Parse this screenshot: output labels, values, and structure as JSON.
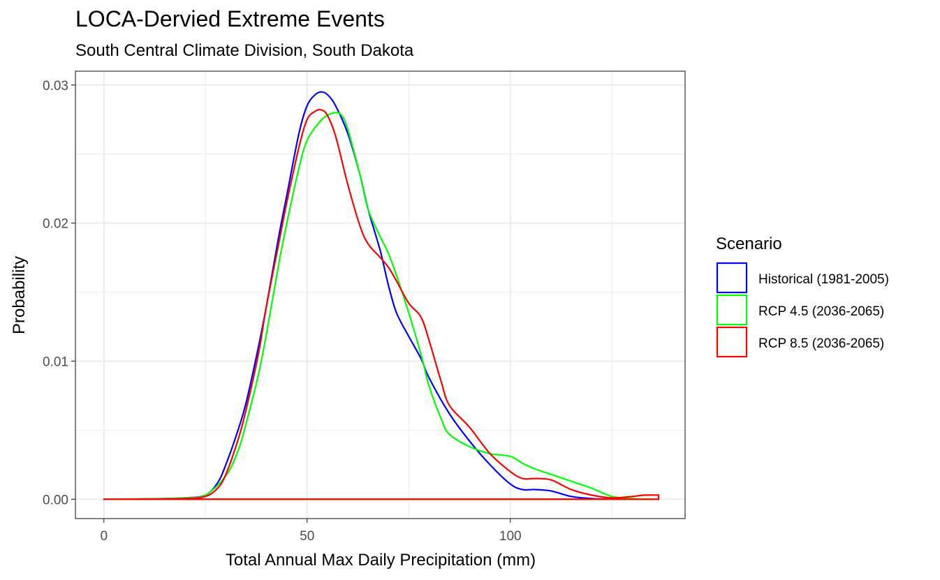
{
  "chart_data": {
    "type": "line",
    "subtype": "density",
    "title": "LOCA-Dervied Extreme Events",
    "subtitle": "South Central Climate Division, South Dakota",
    "xlabel": "Total Annual Max Daily Precipitation (mm)",
    "ylabel": "Probability",
    "xlim": [
      -7,
      143
    ],
    "ylim": [
      -0.0014,
      0.031
    ],
    "xticks": [
      0,
      50,
      100
    ],
    "yticks": [
      0.0,
      0.01,
      0.02,
      0.03
    ],
    "xtick_labels": [
      "0",
      "50",
      "100"
    ],
    "ytick_labels": [
      "0.00",
      "0.01",
      "0.02",
      "0.03"
    ],
    "grid": true,
    "legend": {
      "title": "Scenario",
      "position": "right"
    },
    "series": [
      {
        "name": "Historical (1981-2005)",
        "color": "#0000ff",
        "x": [
          0,
          10,
          20,
          25,
          28,
          30,
          33,
          35,
          38,
          40,
          43,
          45,
          48,
          50,
          52,
          53.5,
          55,
          57,
          60,
          63,
          65,
          68,
          70,
          72,
          75,
          78,
          80,
          85,
          90,
          95,
          100,
          103,
          106,
          110,
          115,
          120,
          125,
          130,
          136.5
        ],
        "y": [
          0,
          2e-05,
          0.0001,
          0.0003,
          0.0012,
          0.0025,
          0.005,
          0.007,
          0.011,
          0.014,
          0.019,
          0.022,
          0.0265,
          0.0285,
          0.0293,
          0.0295,
          0.0293,
          0.0285,
          0.0265,
          0.0235,
          0.021,
          0.018,
          0.0155,
          0.0135,
          0.0118,
          0.0102,
          0.0088,
          0.0062,
          0.0042,
          0.0025,
          0.0011,
          0.0007,
          0.0007,
          0.0006,
          0.0002,
          5e-05,
          2e-05,
          1e-05,
          0
        ]
      },
      {
        "name": "RCP 4.5 (2036-2065)",
        "color": "#00ff00",
        "x": [
          0,
          10,
          15,
          20,
          25,
          30,
          33,
          35,
          38,
          40,
          43,
          45,
          48,
          50,
          53,
          55,
          57,
          58.5,
          60,
          63,
          65,
          68,
          70,
          72,
          75,
          78,
          80,
          83,
          85,
          90,
          95,
          100,
          103,
          106,
          110,
          115,
          120,
          125,
          130,
          136.5
        ],
        "y": [
          0,
          2e-05,
          5e-05,
          0.0001,
          0.0003,
          0.0017,
          0.0035,
          0.0055,
          0.009,
          0.012,
          0.017,
          0.02,
          0.024,
          0.026,
          0.0273,
          0.0278,
          0.028,
          0.0278,
          0.0268,
          0.0235,
          0.021,
          0.019,
          0.0178,
          0.0162,
          0.0135,
          0.0105,
          0.0082,
          0.0058,
          0.0047,
          0.0038,
          0.0033,
          0.0031,
          0.0026,
          0.0022,
          0.0018,
          0.0013,
          0.0008,
          0.0002,
          5e-05,
          0
        ]
      },
      {
        "name": "RCP 8.5 (2036-2065)",
        "color": "#ff0000",
        "x": [
          0,
          10,
          20,
          25,
          28,
          30,
          33,
          35,
          38,
          40,
          43,
          45,
          48,
          50,
          52,
          53.5,
          55,
          57,
          60,
          63,
          65,
          68,
          70,
          72,
          75,
          78,
          80,
          83,
          85,
          90,
          95,
          100,
          103,
          106,
          110,
          115,
          120,
          125,
          130,
          133,
          136.5
        ],
        "y": [
          0,
          1e-05,
          5e-05,
          0.0002,
          0.0008,
          0.0018,
          0.0043,
          0.0065,
          0.0105,
          0.014,
          0.0185,
          0.0215,
          0.0255,
          0.0275,
          0.0281,
          0.0282,
          0.0278,
          0.0263,
          0.0228,
          0.0198,
          0.0185,
          0.0175,
          0.0168,
          0.0158,
          0.0142,
          0.0132,
          0.0115,
          0.0085,
          0.0068,
          0.0052,
          0.0033,
          0.002,
          0.0015,
          0.0015,
          0.0014,
          0.0007,
          0.0003,
          0.0001,
          0.0002,
          0.0003,
          0.0003
        ]
      }
    ]
  }
}
